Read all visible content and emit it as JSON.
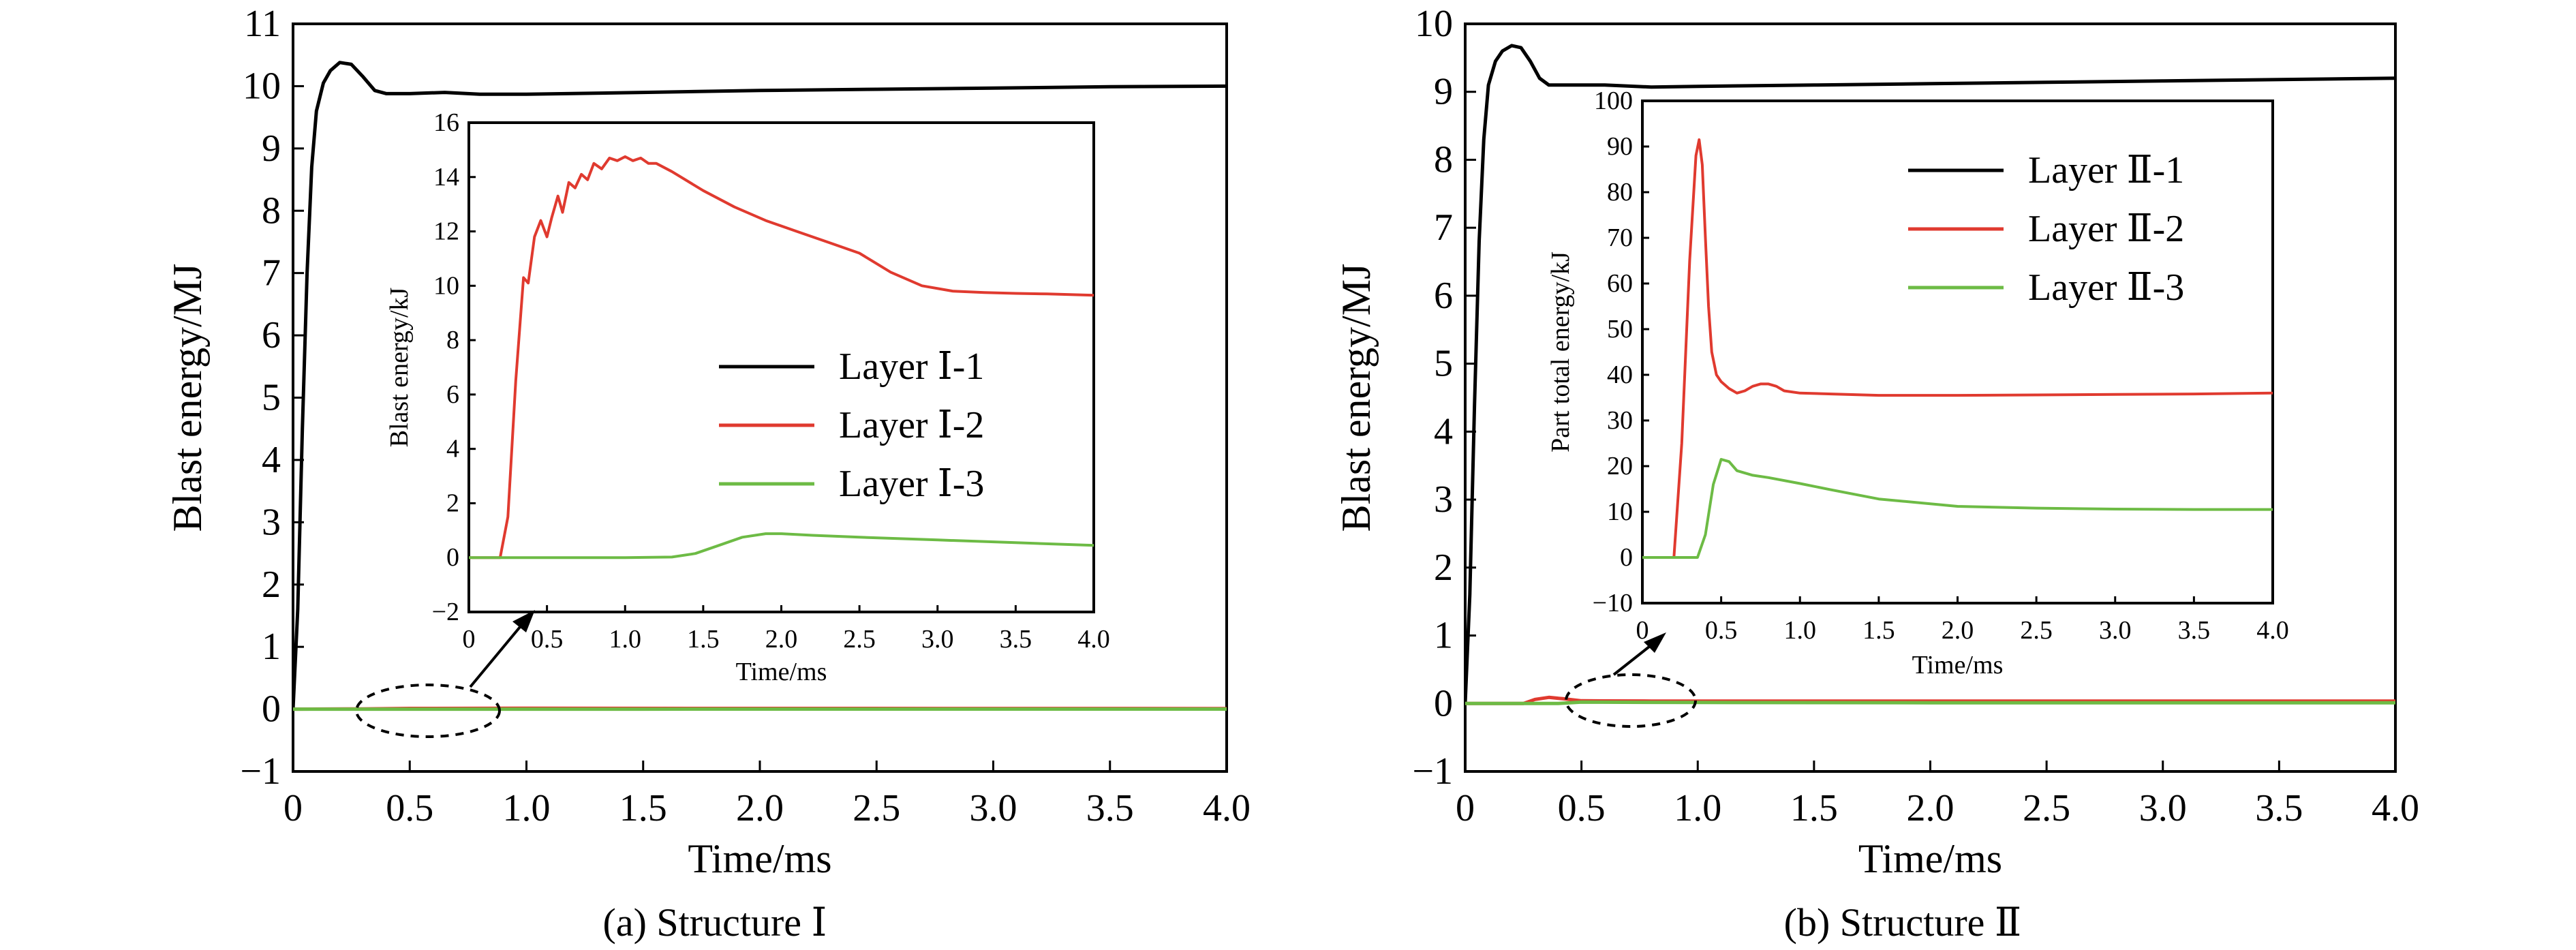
{
  "captions": [
    "(a) Structure Ⅰ",
    "(b) Structure Ⅱ"
  ],
  "chart_data": [
    {
      "id": "main-a",
      "type": "line",
      "xlabel": "Time/ms",
      "ylabel": "Blast energy/MJ",
      "xlim": [
        0,
        4.0
      ],
      "ylim": [
        -1,
        11
      ],
      "xticks": [
        0,
        0.5,
        1.0,
        1.5,
        2.0,
        2.5,
        3.0,
        3.5,
        4.0
      ],
      "xtick_labels": [
        "0",
        "0.5",
        "1.0",
        "1.5",
        "2.0",
        "2.5",
        "3.0",
        "3.5",
        "4.0"
      ],
      "yticks": [
        -1,
        0,
        1,
        2,
        3,
        4,
        5,
        6,
        7,
        8,
        9,
        10,
        11
      ],
      "ytick_labels": [
        "−1",
        "0",
        "1",
        "2",
        "3",
        "4",
        "5",
        "6",
        "7",
        "8",
        "9",
        "10",
        "11"
      ],
      "grid": false,
      "series": [
        {
          "name": "",
          "color": "#000000",
          "x": [
            0,
            0.02,
            0.04,
            0.06,
            0.08,
            0.1,
            0.13,
            0.16,
            0.2,
            0.25,
            0.3,
            0.35,
            0.4,
            0.5,
            0.65,
            0.8,
            1.0,
            1.5,
            2.0,
            2.5,
            3.0,
            3.5,
            4.0
          ],
          "y": [
            0,
            1.6,
            4.5,
            7.0,
            8.7,
            9.6,
            10.05,
            10.25,
            10.38,
            10.35,
            10.15,
            9.93,
            9.88,
            9.88,
            9.9,
            9.87,
            9.87,
            9.9,
            9.93,
            9.95,
            9.97,
            9.99,
            10.0
          ]
        },
        {
          "name": "",
          "color": "#e03a2f",
          "x": [
            0,
            0.3,
            0.5,
            1.0,
            2.0,
            4.0
          ],
          "y": [
            0,
            0.004,
            0.012,
            0.014,
            0.012,
            0.01
          ]
        },
        {
          "name": "",
          "color": "#6dbb45",
          "x": [
            0,
            1.5,
            2.0,
            3.0,
            4.0
          ],
          "y": [
            0,
            0,
            0.001,
            0.001,
            0.0005
          ]
        }
      ],
      "annotation": "dashed ellipse near x≈0.6, y≈0 with arrow pointing to inset"
    },
    {
      "id": "inset-a",
      "type": "line",
      "xlabel": "Time/ms",
      "ylabel": "Blast energy/kJ",
      "xlim": [
        0,
        4.0
      ],
      "ylim": [
        -2,
        16
      ],
      "xticks": [
        0,
        0.5,
        1.0,
        1.5,
        2.0,
        2.5,
        3.0,
        3.5,
        4.0
      ],
      "xtick_labels": [
        "0",
        "0.5",
        "1.0",
        "1.5",
        "2.0",
        "2.5",
        "3.0",
        "3.5",
        "4.0"
      ],
      "yticks": [
        -2,
        0,
        2,
        4,
        6,
        8,
        10,
        12,
        14,
        16
      ],
      "ytick_labels": [
        "−2",
        "0",
        "2",
        "4",
        "6",
        "8",
        "10",
        "12",
        "14",
        "16"
      ],
      "grid": false,
      "legend": "center-right",
      "series": [
        {
          "name": "Layer Ⅰ-1",
          "color": "#000000",
          "x": [],
          "y": []
        },
        {
          "name": "Layer Ⅰ-2",
          "color": "#e03a2f",
          "x": [
            0,
            0.2,
            0.25,
            0.3,
            0.35,
            0.38,
            0.42,
            0.46,
            0.5,
            0.53,
            0.57,
            0.6,
            0.64,
            0.68,
            0.72,
            0.76,
            0.8,
            0.85,
            0.9,
            0.95,
            1.0,
            1.05,
            1.1,
            1.15,
            1.2,
            1.3,
            1.5,
            1.7,
            1.9,
            2.1,
            2.3,
            2.5,
            2.7,
            2.9,
            3.1,
            3.3,
            3.5,
            3.7,
            4.0
          ],
          "y": [
            0,
            0,
            1.5,
            6.5,
            10.3,
            10.1,
            11.8,
            12.4,
            11.8,
            12.5,
            13.3,
            12.7,
            13.8,
            13.6,
            14.1,
            13.9,
            14.5,
            14.3,
            14.7,
            14.6,
            14.75,
            14.6,
            14.7,
            14.5,
            14.5,
            14.2,
            13.5,
            12.9,
            12.4,
            12.0,
            11.6,
            11.2,
            10.5,
            10.0,
            9.8,
            9.75,
            9.72,
            9.7,
            9.65
          ]
        },
        {
          "name": "Layer Ⅰ-3",
          "color": "#6dbb45",
          "x": [
            0,
            0.5,
            1.0,
            1.3,
            1.45,
            1.6,
            1.75,
            1.9,
            2.0,
            2.2,
            2.5,
            3.0,
            3.5,
            4.0
          ],
          "y": [
            0,
            0,
            0,
            0.02,
            0.15,
            0.45,
            0.75,
            0.88,
            0.88,
            0.82,
            0.75,
            0.65,
            0.55,
            0.45
          ]
        }
      ]
    },
    {
      "id": "main-b",
      "type": "line",
      "xlabel": "Time/ms",
      "ylabel": "Blast energy/MJ",
      "xlim": [
        0,
        4.0
      ],
      "ylim": [
        -1,
        10
      ],
      "xticks": [
        0,
        0.5,
        1.0,
        1.5,
        2.0,
        2.5,
        3.0,
        3.5,
        4.0
      ],
      "xtick_labels": [
        "0",
        "0.5",
        "1.0",
        "1.5",
        "2.0",
        "2.5",
        "3.0",
        "3.5",
        "4.0"
      ],
      "yticks": [
        -1,
        0,
        1,
        2,
        3,
        4,
        5,
        6,
        7,
        8,
        9,
        10
      ],
      "ytick_labels": [
        "−1",
        "0",
        "1",
        "2",
        "3",
        "4",
        "5",
        "6",
        "7",
        "8",
        "9",
        "10"
      ],
      "grid": false,
      "series": [
        {
          "name": "",
          "color": "#000000",
          "x": [
            0,
            0.02,
            0.04,
            0.06,
            0.08,
            0.1,
            0.13,
            0.16,
            0.2,
            0.24,
            0.28,
            0.32,
            0.36,
            0.4,
            0.5,
            0.6,
            0.8,
            1.0,
            1.5,
            2.0,
            2.5,
            3.0,
            3.5,
            4.0
          ],
          "y": [
            0,
            1.6,
            4.4,
            6.8,
            8.3,
            9.1,
            9.45,
            9.6,
            9.68,
            9.65,
            9.45,
            9.2,
            9.1,
            9.1,
            9.1,
            9.1,
            9.07,
            9.08,
            9.1,
            9.12,
            9.14,
            9.16,
            9.18,
            9.2
          ]
        },
        {
          "name": "",
          "color": "#e03a2f",
          "x": [
            0,
            0.25,
            0.3,
            0.36,
            0.42,
            0.5,
            0.6,
            0.8,
            1.0,
            2.0,
            4.0
          ],
          "y": [
            0,
            0,
            0.06,
            0.09,
            0.07,
            0.04,
            0.038,
            0.036,
            0.036,
            0.036,
            0.036
          ]
        },
        {
          "name": "",
          "color": "#6dbb45",
          "x": [
            0,
            0.4,
            0.5,
            1.0,
            2.0,
            4.0
          ],
          "y": [
            0,
            0,
            0.02,
            0.015,
            0.011,
            0.01
          ]
        }
      ],
      "annotation": "dashed ellipse near x≈0.5, y≈0 with arrow pointing to inset"
    },
    {
      "id": "inset-b",
      "type": "line",
      "xlabel": "Time/ms",
      "ylabel": "Part total energy/kJ",
      "xlim": [
        0,
        4.0
      ],
      "ylim": [
        -10,
        100
      ],
      "xticks": [
        0,
        0.5,
        1.0,
        1.5,
        2.0,
        2.5,
        3.0,
        3.5,
        4.0
      ],
      "xtick_labels": [
        "0",
        "0.5",
        "1.0",
        "1.5",
        "2.0",
        "2.5",
        "3.0",
        "3.5",
        "4.0"
      ],
      "yticks": [
        -10,
        0,
        10,
        20,
        30,
        40,
        50,
        60,
        70,
        80,
        90,
        100
      ],
      "ytick_labels": [
        "−10",
        "0",
        "10",
        "20",
        "30",
        "40",
        "50",
        "60",
        "70",
        "80",
        "90",
        "100"
      ],
      "grid": false,
      "legend": "top-right",
      "series": [
        {
          "name": "Layer Ⅱ-1",
          "color": "#000000",
          "x": [],
          "y": []
        },
        {
          "name": "Layer Ⅱ-2",
          "color": "#e03a2f",
          "x": [
            0,
            0.2,
            0.25,
            0.3,
            0.34,
            0.36,
            0.38,
            0.4,
            0.42,
            0.44,
            0.47,
            0.5,
            0.55,
            0.6,
            0.65,
            0.7,
            0.75,
            0.8,
            0.85,
            0.9,
            1.0,
            1.2,
            1.5,
            2.0,
            2.5,
            3.0,
            3.5,
            4.0
          ],
          "y": [
            0,
            0,
            25,
            65,
            88,
            91.5,
            86,
            70,
            55,
            45,
            40,
            38.5,
            37,
            36,
            36.5,
            37.5,
            38,
            38,
            37.5,
            36.5,
            36,
            35.8,
            35.5,
            35.5,
            35.6,
            35.7,
            35.8,
            36
          ]
        },
        {
          "name": "Layer Ⅱ-3",
          "color": "#6dbb45",
          "x": [
            0,
            0.35,
            0.4,
            0.45,
            0.5,
            0.55,
            0.6,
            0.7,
            0.8,
            1.0,
            1.2,
            1.5,
            2.0,
            2.5,
            3.0,
            3.5,
            4.0
          ],
          "y": [
            0,
            0,
            5,
            16,
            21.5,
            21,
            19,
            18,
            17.5,
            16.2,
            14.8,
            12.8,
            11.2,
            10.8,
            10.6,
            10.5,
            10.5
          ]
        }
      ]
    }
  ]
}
